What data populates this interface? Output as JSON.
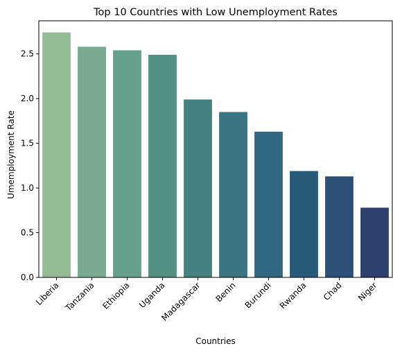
{
  "chart_data": {
    "type": "bar",
    "title": "Top 10 Countries with Low Unemployment Rates",
    "xlabel": "Countries",
    "ylabel": "Umemployment Rate",
    "categories": [
      "Liberia",
      "Tanzania",
      "Ethiopia",
      "Uganda",
      "Madagascar",
      "Benin",
      "Burundi",
      "Rwanda",
      "Chad",
      "Niger"
    ],
    "values": [
      2.74,
      2.58,
      2.54,
      2.49,
      1.99,
      1.85,
      1.63,
      1.19,
      1.13,
      0.78
    ],
    "ylim": [
      0,
      2.87
    ],
    "yticks": [
      "0.0",
      "0.5",
      "1.0",
      "1.5",
      "2.0",
      "2.5"
    ],
    "colors": [
      "#93bb96",
      "#77aa8f",
      "#64a08b",
      "#549185",
      "#44807f",
      "#3a7581",
      "#2f6880",
      "#285a7a",
      "#2c5078",
      "#304170"
    ],
    "grid": false,
    "legend": "none"
  }
}
